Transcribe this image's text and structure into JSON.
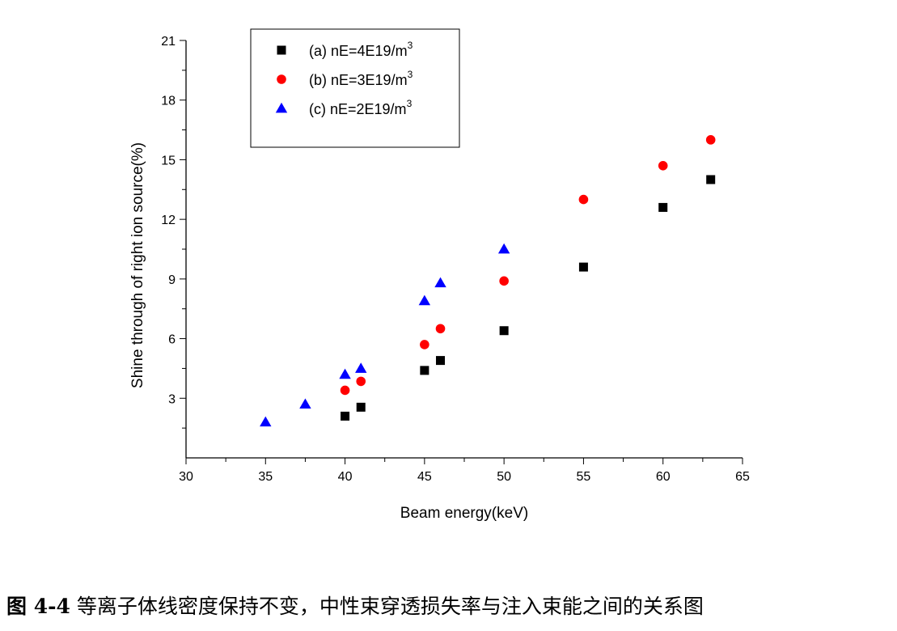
{
  "caption": {
    "label": "图 4-4",
    "text": "等离子体线密度保持不变，中性束穿透损失率与注入束能之间的关系图"
  },
  "chart_data": {
    "type": "scatter",
    "xlabel": "Beam energy(keV)",
    "ylabel": "Shine through of right ion source(%)",
    "xlim": [
      30,
      65
    ],
    "ylim": [
      0,
      21
    ],
    "xticks": [
      30,
      35,
      40,
      45,
      50,
      55,
      60,
      65
    ],
    "yticks": [
      3,
      6,
      9,
      12,
      15,
      18,
      21
    ],
    "legend_position": "top-left",
    "series": [
      {
        "name": "(a) nE=4E19/m",
        "name_superscript": "3",
        "marker": "square",
        "color": "#000000",
        "points": [
          [
            40,
            2.1
          ],
          [
            41,
            2.55
          ],
          [
            45,
            4.4
          ],
          [
            46,
            4.9
          ],
          [
            50,
            6.4
          ],
          [
            55,
            9.6
          ],
          [
            60,
            12.6
          ],
          [
            63,
            14.0
          ]
        ]
      },
      {
        "name": "(b) nE=3E19/m",
        "name_superscript": "3",
        "marker": "circle",
        "color": "#ff0000",
        "points": [
          [
            40,
            3.4
          ],
          [
            41,
            3.85
          ],
          [
            45,
            5.7
          ],
          [
            46,
            6.5
          ],
          [
            50,
            8.9
          ],
          [
            55,
            13.0
          ],
          [
            60,
            14.7
          ],
          [
            63,
            16.0
          ]
        ]
      },
      {
        "name": "(c) nE=2E19/m",
        "name_superscript": "3",
        "marker": "triangle",
        "color": "#0000ff",
        "points": [
          [
            35,
            1.8
          ],
          [
            37.5,
            2.7
          ],
          [
            40,
            4.2
          ],
          [
            41,
            4.5
          ],
          [
            45,
            7.9
          ],
          [
            46,
            8.8
          ],
          [
            50,
            10.5
          ]
        ]
      }
    ]
  }
}
